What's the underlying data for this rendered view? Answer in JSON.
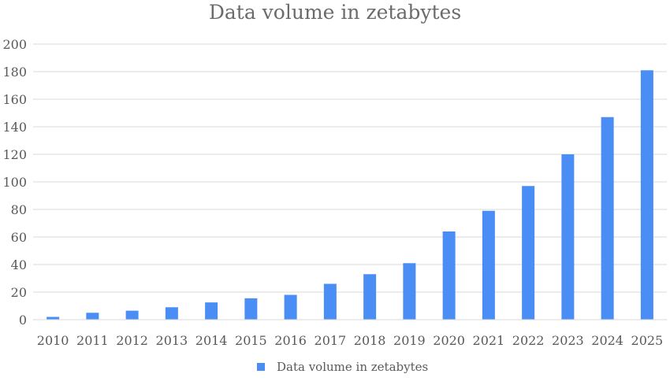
{
  "chart_data": {
    "type": "bar",
    "title": "Data volume in zetabytes",
    "xlabel": "",
    "ylabel": "",
    "categories": [
      "2010",
      "2011",
      "2012",
      "2013",
      "2014",
      "2015",
      "2016",
      "2017",
      "2018",
      "2019",
      "2020",
      "2021",
      "2022",
      "2023",
      "2024",
      "2025"
    ],
    "series": [
      {
        "name": "Data volume in zetabytes",
        "values": [
          2,
          5,
          6.5,
          9,
          12.5,
          15.5,
          18,
          26,
          33,
          41,
          64,
          79,
          97,
          120,
          147,
          181
        ]
      }
    ],
    "ylim": [
      0,
      200
    ],
    "yticks": [
      0,
      20,
      40,
      60,
      80,
      100,
      120,
      140,
      160,
      180,
      200
    ],
    "grid": "horizontal",
    "legend": "bottom",
    "colors": {
      "bar": "#4a8df5"
    }
  }
}
